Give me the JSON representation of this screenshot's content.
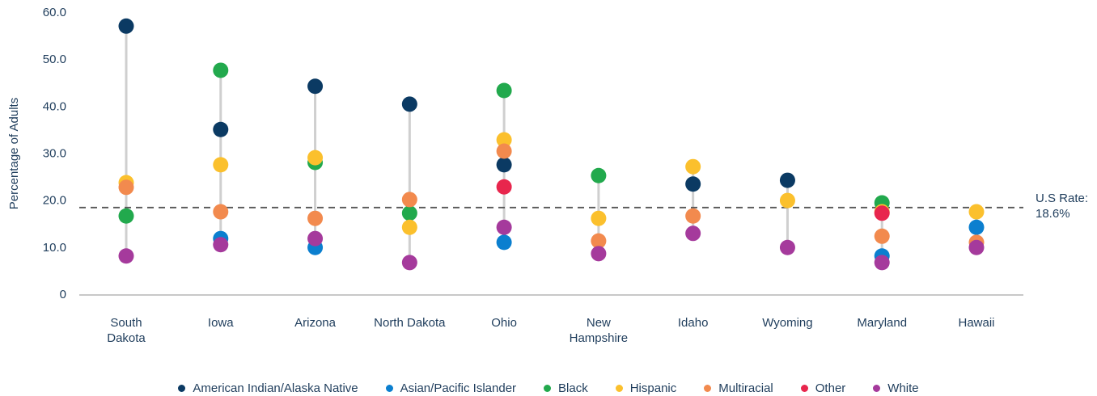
{
  "chart_data": {
    "type": "dot_range",
    "ylabel": "Percentage of Adults",
    "categories": [
      "South Dakota",
      "Iowa",
      "Arizona",
      "North Dakota",
      "Ohio",
      "New Hampshire",
      "Idaho",
      "Wyoming",
      "Maryland",
      "Hawaii"
    ],
    "series": [
      {
        "name": "American Indian/Alaska Native",
        "color": "#0b3a63",
        "values": [
          57.2,
          35.2,
          44.4,
          40.6,
          27.7,
          null,
          23.6,
          24.4,
          null,
          null
        ]
      },
      {
        "name": "Asian/Pacific Islander",
        "color": "#0b7fcf",
        "values": [
          null,
          12.0,
          10.1,
          null,
          11.2,
          null,
          null,
          null,
          8.3,
          14.4
        ]
      },
      {
        "name": "Black",
        "color": "#22a94d",
        "values": [
          16.8,
          47.8,
          28.2,
          17.4,
          43.5,
          25.4,
          null,
          null,
          19.6,
          null
        ]
      },
      {
        "name": "Hispanic",
        "color": "#fbc02d",
        "values": [
          23.9,
          27.7,
          29.2,
          14.4,
          33.0,
          16.3,
          27.3,
          20.1,
          17.7,
          17.7
        ]
      },
      {
        "name": "Multiracial",
        "color": "#f28a4e",
        "values": [
          22.9,
          17.7,
          16.3,
          20.3,
          30.6,
          11.5,
          16.8,
          null,
          12.5,
          11.2
        ]
      },
      {
        "name": "Other",
        "color": "#e8264d",
        "values": [
          null,
          null,
          null,
          null,
          23.0,
          null,
          null,
          null,
          17.4,
          null
        ]
      },
      {
        "name": "White",
        "color": "#a53a9c",
        "values": [
          8.3,
          10.7,
          12.0,
          6.9,
          14.4,
          8.8,
          13.1,
          10.1,
          6.9,
          10.1
        ]
      }
    ],
    "ylim": [
      0,
      60
    ],
    "yticks": [
      0,
      {
        "value": 10,
        "label": "10.0"
      },
      {
        "value": 20,
        "label": "20.0"
      },
      {
        "value": 30,
        "label": "30.0"
      },
      {
        "value": 40,
        "label": "40.0"
      },
      {
        "value": 50,
        "label": "50.0"
      },
      {
        "value": 60,
        "label": "60.0"
      }
    ],
    "reference_line": {
      "value": 18.6,
      "label_lines": [
        "U.S Rate:",
        "18.6%"
      ]
    },
    "grid": false,
    "legend": "bottom"
  }
}
